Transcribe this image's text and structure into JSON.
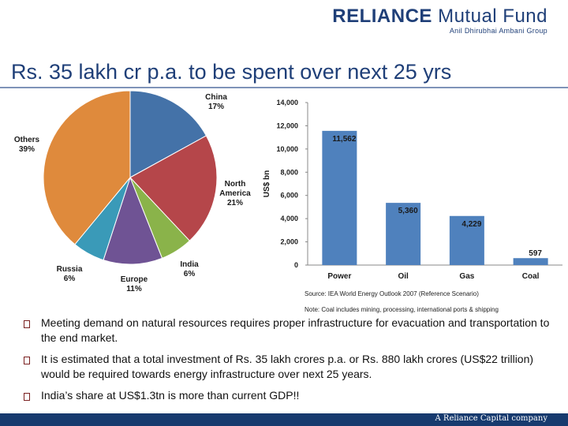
{
  "brand": {
    "name_bold": "RELIANCE",
    "name_rest": " Mutual Fund",
    "sub": "Anil Dhirubhai Ambani Group"
  },
  "title": "Rs. 35 lakh cr p.a. to be spent over next 25 yrs",
  "chart_data": [
    {
      "type": "pie",
      "categories": [
        "China",
        "North America",
        "India",
        "Europe",
        "Russia",
        "Others"
      ],
      "values": [
        17,
        21,
        6,
        11,
        6,
        39
      ],
      "labels": [
        "17%",
        "21%",
        "6%",
        "11%",
        "6%",
        "39%"
      ],
      "colors": [
        "#4472a8",
        "#b5464a",
        "#8ab34a",
        "#6f5394",
        "#3a9ab8",
        "#df8a3c"
      ]
    },
    {
      "type": "bar",
      "categories": [
        "Power",
        "Oil",
        "Gas",
        "Coal"
      ],
      "values": [
        11562,
        5360,
        4229,
        597
      ],
      "value_labels": [
        "11,562",
        "5,360",
        "4,229",
        "597"
      ],
      "ylabel": "US$ bn",
      "ylim": [
        0,
        14000
      ],
      "yticks": [
        0,
        2000,
        4000,
        6000,
        8000,
        10000,
        12000,
        14000
      ],
      "ytick_labels": [
        "0",
        "2,000",
        "4,000",
        "6,000",
        "8,000",
        "10,000",
        "12,000",
        "14,000"
      ],
      "color": "#4f81bd"
    }
  ],
  "source": "Source: IEA World Energy Outlook 2007 (Reference Scenario)",
  "note": "Note: Coal includes mining, processing, international ports & shipping",
  "bullets": [
    "Meeting demand on natural resources requires proper infrastructure for evacuation and transportation to the end market.",
    "It is estimated that a total investment of Rs. 35 lakh crores p.a. or Rs. 880 lakh crores (US$22 trillion) would be required towards energy infrastructure over next 25 years.",
    "India’s share at US$1.3tn is more than current GDP!!"
  ],
  "footer": "A Reliance Capital company"
}
